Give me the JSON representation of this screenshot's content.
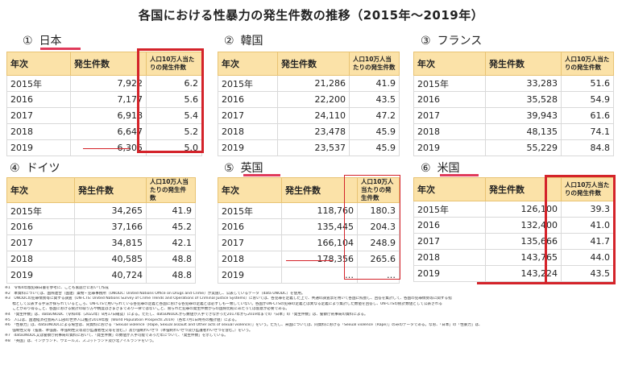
{
  "title": "各国における性暴力の発生件数の推移（2015年～2019年）",
  "headers": {
    "year": "年次",
    "count": "発生件数",
    "rate": "人口10万人当たりの発生件数"
  },
  "panels": [
    {
      "num": "①",
      "name": "日本",
      "rows": [
        {
          "year": "2015年",
          "count": "7,922",
          "rate": "6.2"
        },
        {
          "year": "2016",
          "count": "7,177",
          "rate": "5.6"
        },
        {
          "year": "2017",
          "count": "6,918",
          "rate": "5.4"
        },
        {
          "year": "2018",
          "count": "6,647",
          "rate": "5.2"
        },
        {
          "year": "2019",
          "count": "6,305",
          "rate": "5.0"
        }
      ]
    },
    {
      "num": "②",
      "name": "韓国",
      "rows": [
        {
          "year": "2015年",
          "count": "21,286",
          "rate": "41.9"
        },
        {
          "year": "2016",
          "count": "22,200",
          "rate": "43.5"
        },
        {
          "year": "2017",
          "count": "24,110",
          "rate": "47.2"
        },
        {
          "year": "2018",
          "count": "23,478",
          "rate": "45.9"
        },
        {
          "year": "2019",
          "count": "23,537",
          "rate": "45.9"
        }
      ]
    },
    {
      "num": "③",
      "name": "フランス",
      "rows": [
        {
          "year": "2015年",
          "count": "33,283",
          "rate": "51.6"
        },
        {
          "year": "2016",
          "count": "35,528",
          "rate": "54.9"
        },
        {
          "year": "2017",
          "count": "39,943",
          "rate": "61.6"
        },
        {
          "year": "2018",
          "count": "48,135",
          "rate": "74.1"
        },
        {
          "year": "2019",
          "count": "55,229",
          "rate": "84.8"
        }
      ]
    },
    {
      "num": "④",
      "name": "ドイツ",
      "rows": [
        {
          "year": "2015年",
          "count": "34,265",
          "rate": "41.9"
        },
        {
          "year": "2016",
          "count": "37,166",
          "rate": "45.2"
        },
        {
          "year": "2017",
          "count": "34,815",
          "rate": "42.1"
        },
        {
          "year": "2018",
          "count": "40,585",
          "rate": "48.8"
        },
        {
          "year": "2019",
          "count": "40,724",
          "rate": "48.8"
        }
      ]
    },
    {
      "num": "⑤",
      "name": "英国",
      "rows": [
        {
          "year": "2015年",
          "count": "118,760",
          "rate": "180.3"
        },
        {
          "year": "2016",
          "count": "135,445",
          "rate": "204.3"
        },
        {
          "year": "2017",
          "count": "166,104",
          "rate": "248.9"
        },
        {
          "year": "2018",
          "count": "178,356",
          "rate": "265.6"
        },
        {
          "year": "2019",
          "count": "…",
          "rate": "…"
        }
      ]
    },
    {
      "num": "⑥",
      "name": "米国",
      "rows": [
        {
          "year": "2015年",
          "count": "126,100",
          "rate": "39.3"
        },
        {
          "year": "2016",
          "count": "132,400",
          "rate": "41.0"
        },
        {
          "year": "2017",
          "count": "135,666",
          "rate": "41.7"
        },
        {
          "year": "2018",
          "count": "143,765",
          "rate": "44.0"
        },
        {
          "year": "2019",
          "count": "143,224",
          "rate": "43.5"
        }
      ]
    }
  ],
  "notes": [
    "※1　令和4年版犯罪白書を参考に、こども家庭庁において作成",
    "※2　本資料については、国際連合（国連）薬物・犯罪事務所（UNODC: United Nations Office on Drugs and Crime）が実施し、公表しているデータ（data UNODC）を使用。",
    "※3　UNODCの犯罪情勢等に関する調査（UN-CTS: United Nations Survey of Crime Trends and Operations of Criminal Justice Systems）においては、各犯罪を定義した上で、共通の調査票を用いて各国に照会し、回答を集計して、各国の犯罪情勢等に関する指",
    "　　標として公表する手法が採られているところ、UN-CTSで用いられている各犯罪の定義と各国における各犯罪の定義とは必ずしも一致していない。各国がUN-CTSの犯罪の定義とは異なる定義により集計した数値を回答し、UN-CTSの統計数値として公表される",
    "　　ことがあり得ること、各国における統計の取り方や精度はさまざまであり一律ではないこと、限られた犯罪の発生件数からの国際比較にあたっては留意が必要である。",
    "※4　「発生件数」は、dataUNODC（令和4年（2022年）8月17日確認）による。ただし、dataUNODCから数値が入手できなかった2017年から2019年までの「日本」の「発生件数」は、警察庁刑事局の資料による。",
    "※5　人口は、国連経済社会局人口部の世界人口推計2019年版（World Population Prospects 2019）（各年7月1日時点の推計値）による。",
    "※6　「性暴力」は、dataUNODCによる場合は、同資料における「Sexual violence（Rape, Sexual assault and Other acts of sexual violence）」をいう。ただし、米国については、同資料における「Sexual violence（Rape）」のみのデータである。なお、「日本」の「性暴力」は、",
    "　　強制性交等（強姦、準強姦、準強制性交等及び監護者性交等を含む。）及び強制わいせつ（準強制わいせつ及び監護者わいせつを含む。）をいう。",
    "※7　dataUNODC又は警察庁刑事局の資料において、「発生件数」の数値が入手可能であった年について、「発生件数」を示している。",
    "※8　「英国」は、イングランド、ウェールズ、スコットランド及び北アイルランドをいう。"
  ]
}
